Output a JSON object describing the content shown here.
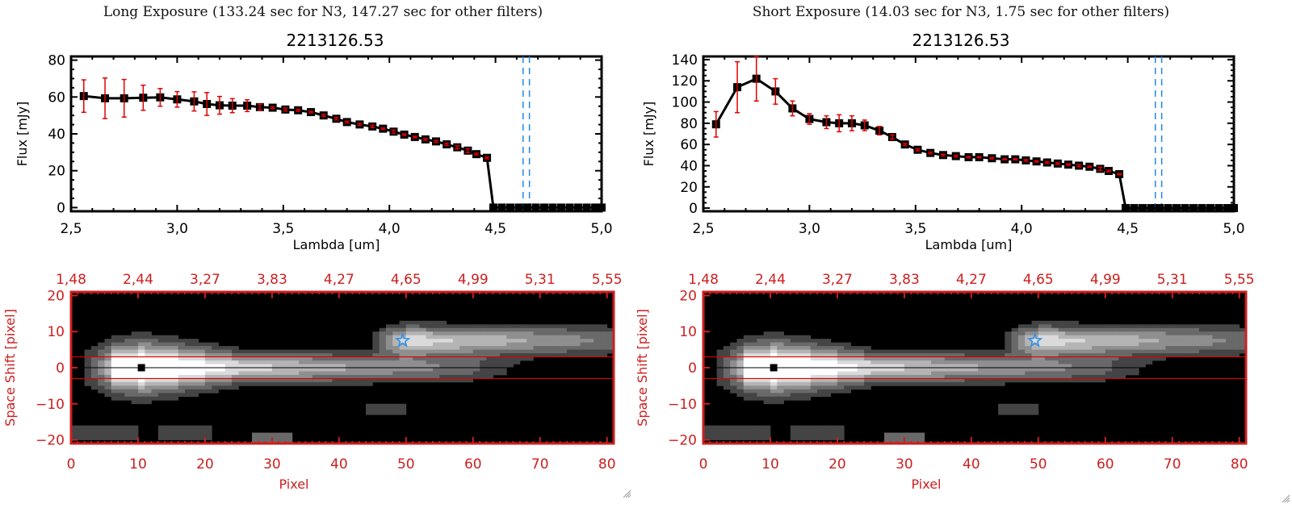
{
  "panels": [
    {
      "id": "long",
      "title": "Long Exposure (133.24 sec for N3, 147.27 sec for other filters)",
      "object_id": "2213126.53"
    },
    {
      "id": "short",
      "title": "Short Exposure (14.03 sec for N3, 1.75 sec for other filters)",
      "object_id": "2213126.53"
    }
  ],
  "colors": {
    "spectrum_line": "#000000",
    "error_bar": "#e00000",
    "reference_line": "#2288ee",
    "image_frame": "#cc1f1f",
    "aperture_line": "#dd0000",
    "star_marker": "#2a8ff0"
  },
  "chart_data": [
    {
      "type": "line",
      "panel": "long",
      "title": "2213126.53",
      "xlabel": "Lambda [um]",
      "ylabel": "Flux [mJy]",
      "xlim": [
        2.5,
        5.0
      ],
      "ylim": [
        -2,
        82
      ],
      "xticks": [
        "2.5",
        "3.0",
        "3.5",
        "4.0",
        "4.5",
        "5.0"
      ],
      "yticks": [
        "0",
        "20",
        "40",
        "60",
        "80"
      ],
      "x": [
        2.56,
        2.66,
        2.75,
        2.84,
        2.92,
        3.0,
        3.08,
        3.14,
        3.2,
        3.26,
        3.33,
        3.39,
        3.45,
        3.51,
        3.57,
        3.63,
        3.69,
        3.75,
        3.8,
        3.86,
        3.92,
        3.97,
        4.02,
        4.07,
        4.12,
        4.17,
        4.22,
        4.27,
        4.32,
        4.37,
        4.41,
        4.46,
        4.49,
        4.53,
        4.57,
        4.61,
        4.65,
        4.69,
        4.73,
        4.77,
        4.81,
        4.85,
        4.89,
        4.93,
        4.97,
        5.0
      ],
      "values": [
        60.5,
        59.3,
        59.3,
        59.6,
        59.8,
        58.7,
        57.6,
        56.2,
        55.5,
        55.3,
        55.3,
        54.5,
        54.2,
        53.2,
        52.8,
        51.8,
        50.0,
        48.2,
        46.4,
        45.1,
        44.0,
        42.8,
        41.2,
        39.6,
        38.3,
        37.0,
        35.9,
        34.3,
        32.7,
        30.9,
        29.0,
        27.0,
        0,
        0,
        0,
        0,
        0,
        0,
        0,
        0,
        0,
        0,
        0,
        0,
        0,
        0
      ],
      "errors": [
        8.8,
        11.0,
        10.2,
        6.8,
        4.8,
        4.2,
        5.2,
        6.2,
        4.8,
        3.8,
        3.2,
        1.6,
        0.5,
        0.8,
        0.5,
        0.4,
        0.6,
        0.6,
        0.5,
        0.5,
        0.6,
        0.4,
        0.8,
        0.4,
        0.4,
        0.5,
        0.5,
        0.6,
        0.8,
        1.0,
        0.5,
        0.5,
        0,
        0,
        0,
        0,
        0,
        0,
        0,
        0,
        0,
        0,
        0,
        0,
        0,
        0
      ],
      "vlines": [
        4.63,
        4.66
      ],
      "hline_dashed": 0
    },
    {
      "type": "line",
      "panel": "short",
      "title": "2213126.53",
      "xlabel": "Lambda [um]",
      "ylabel": "Flux [mJy]",
      "xlim": [
        2.5,
        5.0
      ],
      "ylim": [
        -3,
        143
      ],
      "xticks": [
        "2.5",
        "3.0",
        "3.5",
        "4.0",
        "4.5",
        "5.0"
      ],
      "yticks": [
        "0",
        "20",
        "40",
        "60",
        "80",
        "100",
        "120",
        "140"
      ],
      "x": [
        2.56,
        2.66,
        2.75,
        2.84,
        2.92,
        3.0,
        3.08,
        3.14,
        3.2,
        3.26,
        3.33,
        3.39,
        3.45,
        3.51,
        3.57,
        3.63,
        3.69,
        3.75,
        3.8,
        3.86,
        3.92,
        3.97,
        4.02,
        4.07,
        4.12,
        4.17,
        4.22,
        4.27,
        4.32,
        4.37,
        4.41,
        4.46,
        4.49,
        4.53,
        4.57,
        4.61,
        4.65,
        4.69,
        4.73,
        4.77,
        4.81,
        4.85,
        4.89,
        4.93,
        4.97,
        5.0
      ],
      "values": [
        79,
        114,
        122,
        110,
        94,
        84,
        81,
        80,
        80,
        78,
        73,
        67,
        60,
        55,
        52,
        50,
        49,
        48,
        48,
        47,
        46,
        46,
        45,
        44,
        43,
        42,
        41,
        40,
        39,
        37,
        35,
        32,
        0,
        0,
        0,
        0,
        0,
        0,
        0,
        0,
        0,
        0,
        0,
        0,
        0,
        0
      ],
      "errors": [
        12,
        24,
        21,
        12,
        7,
        5,
        6,
        8,
        7,
        5,
        4,
        2,
        1,
        1,
        0.8,
        0.8,
        0.8,
        0.6,
        0.6,
        0.6,
        0.5,
        0.6,
        0.8,
        0.6,
        0.8,
        0.8,
        0.7,
        1,
        0.6,
        1.5,
        0.7,
        0.5,
        0,
        0,
        0,
        0,
        0,
        0,
        0,
        0,
        0,
        0,
        0,
        0,
        0,
        0
      ],
      "vlines": [
        4.63,
        4.66
      ],
      "hline_dashed": 0
    },
    {
      "type": "heatmap",
      "panel": "long",
      "xlabel": "Pixel",
      "ylabel": "Space Shift [pixel]",
      "xlim": [
        0,
        81
      ],
      "ylim": [
        -21,
        21
      ],
      "xticks": [
        "0",
        "10",
        "20",
        "30",
        "40",
        "50",
        "60",
        "70",
        "80"
      ],
      "yticks": [
        "-20",
        "-10",
        "0",
        "10",
        "20"
      ],
      "top_xticks": [
        "1.48",
        "2.44",
        "3.27",
        "3.83",
        "4.27",
        "4.65",
        "4.99",
        "5.31",
        "5.55"
      ],
      "aperture": [
        -3,
        3
      ],
      "source_marker": {
        "x": 10.5,
        "y": 0
      },
      "star_marker": {
        "x": 49.5,
        "y": 7.5
      }
    },
    {
      "type": "heatmap",
      "panel": "short",
      "xlabel": "Pixel",
      "ylabel": "Space Shift [pixel]",
      "xlim": [
        0,
        81
      ],
      "ylim": [
        -21,
        21
      ],
      "xticks": [
        "0",
        "10",
        "20",
        "30",
        "40",
        "50",
        "60",
        "70",
        "80"
      ],
      "yticks": [
        "-20",
        "-10",
        "0",
        "10",
        "20"
      ],
      "top_xticks": [
        "1.48",
        "2.44",
        "3.27",
        "3.83",
        "4.27",
        "4.65",
        "4.99",
        "5.31",
        "5.55"
      ],
      "aperture": [
        -3,
        3
      ],
      "source_marker": {
        "x": 10.5,
        "y": 0
      },
      "star_marker": {
        "x": 49.5,
        "y": 7.5
      }
    }
  ]
}
